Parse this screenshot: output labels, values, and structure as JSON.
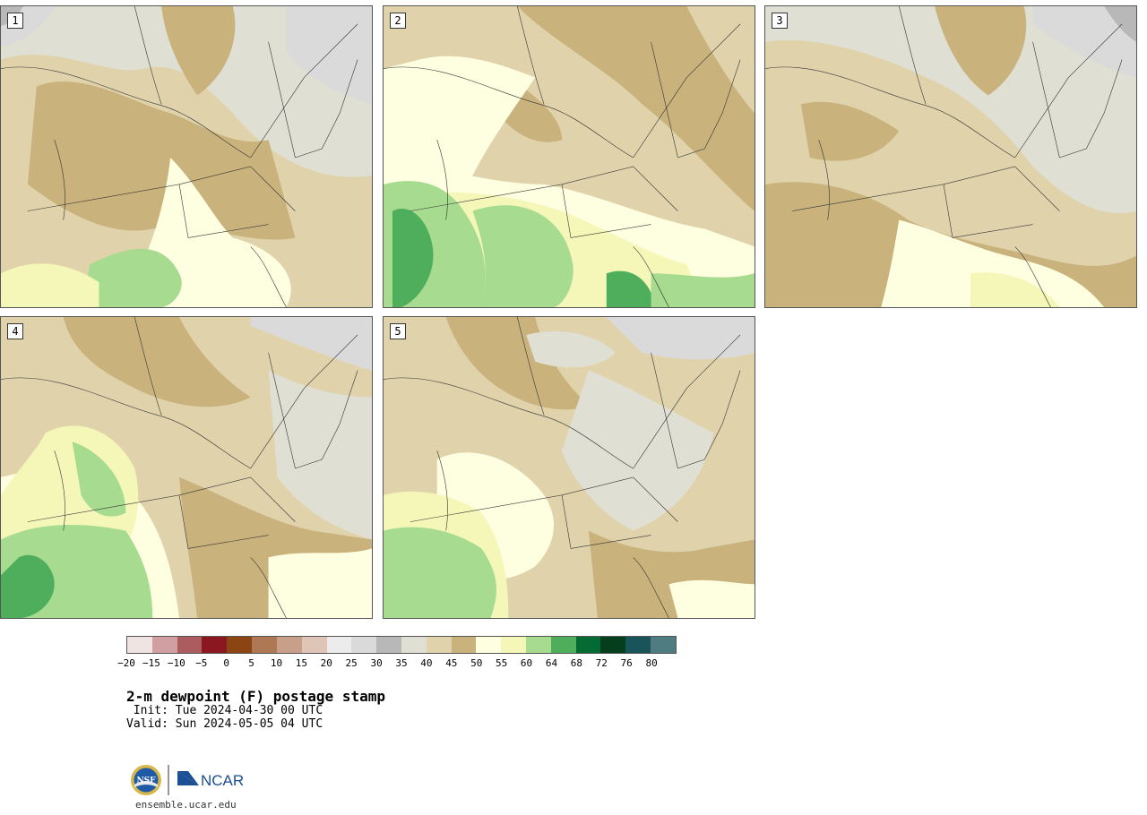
{
  "product": {
    "title": "2-m dewpoint (F) postage stamp",
    "init_label": " Init: Tue 2024-04-30 00 UTC",
    "valid_label": "Valid: Sun 2024-05-05 04 UTC"
  },
  "members": [
    {
      "label": "1"
    },
    {
      "label": "2"
    },
    {
      "label": "3"
    },
    {
      "label": "4"
    },
    {
      "label": "5"
    }
  ],
  "colorbar": {
    "tick_labels": [
      "−20",
      "−15",
      "−10",
      "−5",
      "0",
      "5",
      "10",
      "15",
      "20",
      "25",
      "30",
      "35",
      "40",
      "45",
      "50",
      "55",
      "60",
      "64",
      "68",
      "72",
      "76",
      "80"
    ],
    "colors": [
      "#efe4e2",
      "#d19fa1",
      "#ac5c5e",
      "#8b1820",
      "#8a4512",
      "#ae7854",
      "#c8a08a",
      "#dfc5b6",
      "#ececec",
      "#dadada",
      "#b8b8b8",
      "#dfdfd3",
      "#e0d3ac",
      "#c9b27c",
      "#fefee1",
      "#f5f7b8",
      "#a7db8f",
      "#4eae5c",
      "#036b33",
      "#053e1c",
      "#19545b",
      "#4f7c80"
    ]
  },
  "map_colors": {
    "gray_20": "#ececec",
    "gray_25": "#dadada",
    "gray_30": "#b8b8b8",
    "tan_35": "#dfdfd3",
    "tan_40": "#e0d3ac",
    "tan_45": "#c9b27c",
    "yellow_50": "#fefee1",
    "yellow_55": "#f5f7b8",
    "green_60": "#a7db8f",
    "green_64": "#4eae5c"
  },
  "footer": {
    "logo_nsf": "NSF",
    "logo_ncar": "NCAR",
    "site": "ensemble.ucar.edu"
  }
}
